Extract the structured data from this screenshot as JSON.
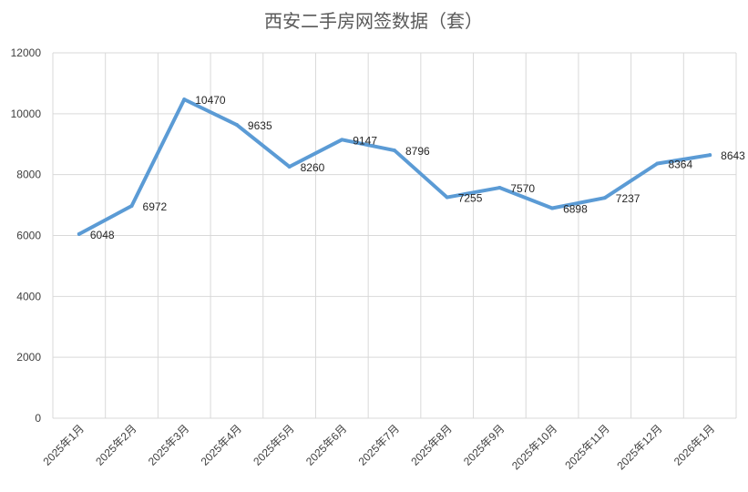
{
  "chart_data": {
    "type": "line",
    "title": "西安二手房网签数据（套）",
    "xlabel": "",
    "ylabel": "",
    "categories": [
      "2025年1月",
      "2025年2月",
      "2025年3月",
      "2025年4月",
      "2025年5月",
      "2025年6月",
      "2025年7月",
      "2025年8月",
      "2025年9月",
      "2025年10月",
      "2025年11月",
      "2025年12月",
      "2026年1月"
    ],
    "y_ticks": [
      "0",
      "2000",
      "4000",
      "6000",
      "8000",
      "10000",
      "12000"
    ],
    "ylim": [
      0,
      12000
    ],
    "grid": true,
    "legend": "none",
    "series": [
      {
        "values": [
          6048,
          6972,
          10470,
          9635,
          8260,
          9147,
          8796,
          7255,
          7570,
          6898,
          7237,
          8364,
          8643
        ],
        "labels": [
          "6048",
          "6972",
          "10470",
          "9635",
          "8260",
          "9147",
          "8796",
          "7255",
          "7570",
          "6898",
          "7237",
          "8364",
          "8643"
        ],
        "color": "#5b9bd5"
      }
    ]
  }
}
